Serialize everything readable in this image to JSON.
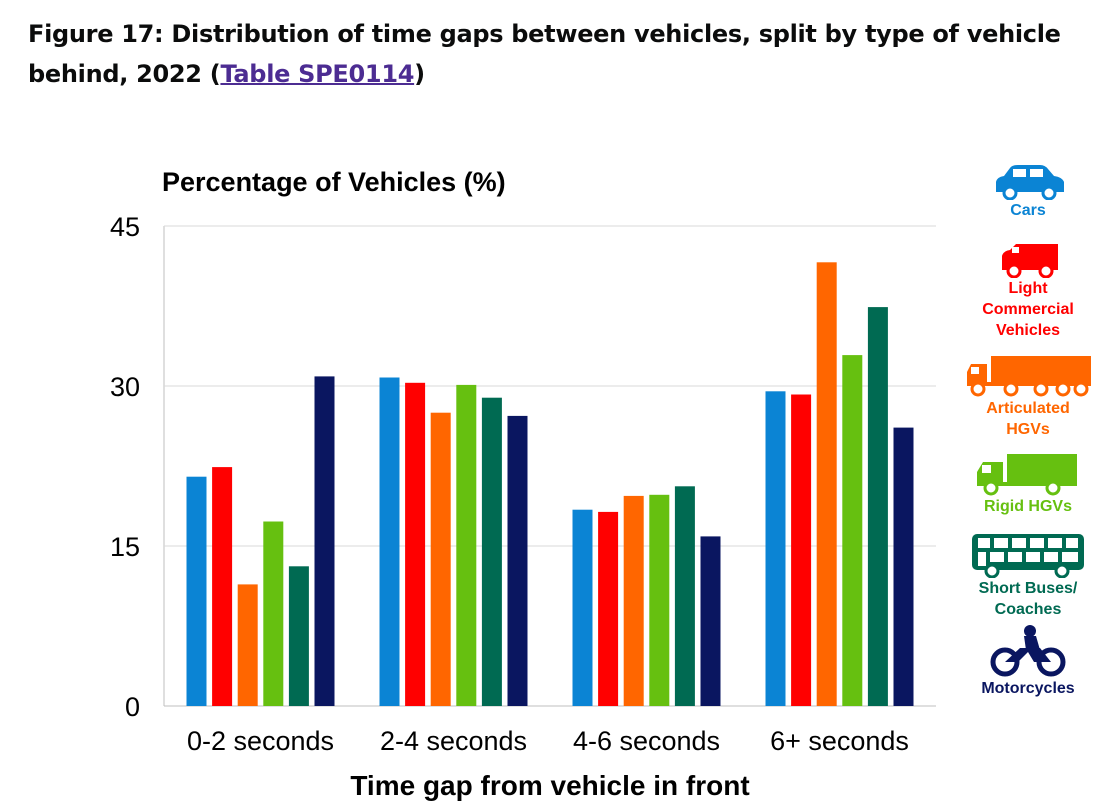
{
  "figure": {
    "title_prefix": "Figure 17: Distribution of time gaps between vehicles, split by type of vehicle behind, 2022 (",
    "link_text": "Table SPE0114",
    "title_suffix": ")"
  },
  "chart_data": {
    "type": "bar",
    "title": "",
    "ylabel": "Percentage of Vehicles (%)",
    "xlabel": "Time gap from vehicle in front",
    "ylim": [
      0,
      45
    ],
    "yticks": [
      "0",
      "15",
      "30",
      "45"
    ],
    "ytick_values": [
      0,
      15,
      30,
      45
    ],
    "categories": [
      "0-2 seconds",
      "2-4 seconds",
      "4-6 seconds",
      "6+ seconds"
    ],
    "grid": true,
    "legend_position": "right",
    "series": [
      {
        "name": "Cars",
        "color": "#0b84d4",
        "icon": "car-icon",
        "values": [
          21.5,
          30.8,
          18.4,
          29.5
        ]
      },
      {
        "name": "Light Commercial Vehicles",
        "color": "#ff0000",
        "icon": "van-icon",
        "values": [
          22.4,
          30.3,
          18.2,
          29.2
        ]
      },
      {
        "name": "Articulated HGVs",
        "color": "#ff6600",
        "icon": "articulated-lorry-icon",
        "values": [
          11.4,
          27.5,
          19.7,
          41.6
        ]
      },
      {
        "name": "Rigid HGVs",
        "color": "#66c010",
        "icon": "rigid-lorry-icon",
        "values": [
          17.3,
          30.1,
          19.8,
          32.9
        ]
      },
      {
        "name": "Short Buses/ Coaches",
        "color": "#006a52",
        "icon": "bus-icon",
        "values": [
          13.1,
          28.9,
          20.6,
          37.4
        ]
      },
      {
        "name": "Motorcycles",
        "color": "#0a1660",
        "icon": "motorcycle-icon",
        "values": [
          30.9,
          27.2,
          15.9,
          26.1
        ]
      }
    ]
  },
  "legend": [
    {
      "label_lines": [
        "Cars"
      ],
      "color": "#0b84d4",
      "icon": "car-icon"
    },
    {
      "label_lines": [
        "Light",
        "Commercial",
        "Vehicles"
      ],
      "color": "#ff0000",
      "icon": "van-icon"
    },
    {
      "label_lines": [
        "Articulated",
        "HGVs"
      ],
      "color": "#ff6600",
      "icon": "articulated-lorry-icon"
    },
    {
      "label_lines": [
        "Rigid HGVs"
      ],
      "color": "#66c010",
      "icon": "rigid-lorry-icon"
    },
    {
      "label_lines": [
        "Short Buses/",
        "Coaches"
      ],
      "color": "#006a52",
      "icon": "bus-icon"
    },
    {
      "label_lines": [
        "Motorcycles"
      ],
      "color": "#0a1660",
      "icon": "motorcycle-icon"
    }
  ]
}
